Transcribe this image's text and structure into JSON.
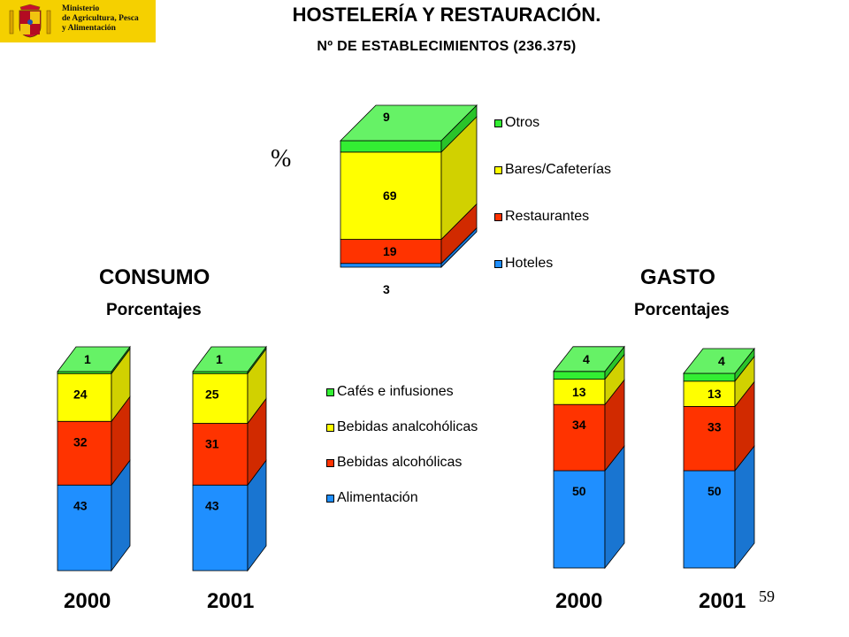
{
  "logo": {
    "ministry_lines": "Ministerio\nde Agricultura, Pesca\ny Alimentación",
    "crest_icon": "coat-of-arms-icon"
  },
  "title": "HOSTELERÍA Y RESTAURACIÓN.",
  "subtitle": "Nº DE ESTABLECIMIENTOS (236.375)",
  "percent_symbol": "%",
  "sections": {
    "consumo": {
      "title": "CONSUMO",
      "subtitle": "Porcentajes"
    },
    "gasto": {
      "title": "GASTO",
      "subtitle": "Porcentajes"
    }
  },
  "page_number": "59",
  "colors": {
    "hoteles": "#1f8fff",
    "restaurantes": "#ff3300",
    "bares": "#ffff00",
    "otros": "#33ee33"
  },
  "chart_data": [
    {
      "id": "establecimientos",
      "type": "bar",
      "stacked": true,
      "unit": "%",
      "categories": [
        ""
      ],
      "series": [
        {
          "name": "Hoteles",
          "values": [
            3
          ],
          "label": "3",
          "color": "#1f8fff"
        },
        {
          "name": "Restaurantes",
          "values": [
            19
          ],
          "label": "19",
          "color": "#ff3300"
        },
        {
          "name": "Bares/Cafeterías",
          "values": [
            69
          ],
          "label": "69",
          "color": "#ffff00"
        },
        {
          "name": "Otros",
          "values": [
            9
          ],
          "label": "9",
          "color": "#33ee33"
        }
      ],
      "legend": [
        "Otros",
        "Bares/Cafeterías",
        "Restaurantes",
        "Hoteles"
      ],
      "legend_position": "right"
    },
    {
      "id": "consumo",
      "type": "bar",
      "stacked": true,
      "unit": "%",
      "categories": [
        "2000",
        "2001"
      ],
      "series": [
        {
          "name": "Alimentación",
          "values": [
            43,
            43
          ],
          "color": "#1f8fff"
        },
        {
          "name": "Bebidas alcohólicas",
          "values": [
            32,
            31
          ],
          "color": "#ff3300"
        },
        {
          "name": "Bebidas analcohólicas",
          "values": [
            24,
            25
          ],
          "color": "#ffff00"
        },
        {
          "name": "Cafés e infusiones",
          "values": [
            1,
            1
          ],
          "color": "#33ee33"
        }
      ],
      "legend": [
        "Cafés e infusiones",
        "Bebidas analcohólicas",
        "Bebidas alcohólicas",
        "Alimentación"
      ],
      "legend_position": "center"
    },
    {
      "id": "gasto",
      "type": "bar",
      "stacked": true,
      "unit": "%",
      "categories": [
        "2000",
        "2001"
      ],
      "series": [
        {
          "name": "Alimentación",
          "values": [
            50,
            50
          ],
          "color": "#1f8fff"
        },
        {
          "name": "Bebidas alcohólicas",
          "values": [
            34,
            33
          ],
          "color": "#ff3300"
        },
        {
          "name": "Bebidas analcohólicas",
          "values": [
            13,
            13
          ],
          "color": "#ffff00"
        },
        {
          "name": "Cafés e infusiones",
          "values": [
            4,
            4
          ],
          "color": "#33ee33"
        }
      ]
    }
  ]
}
